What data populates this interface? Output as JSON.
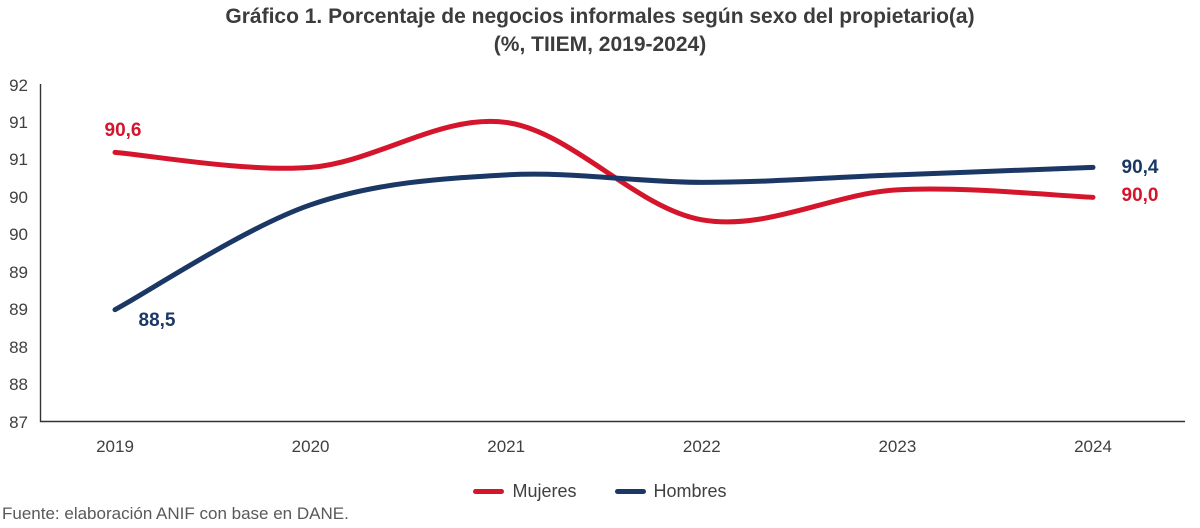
{
  "title": {
    "line1": "Gráfico 1. Porcentaje de negocios informales según sexo del propietario(a)",
    "line2": "(%, TIIEM, 2019-2024)"
  },
  "source": "Fuente: elaboración ANIF con base en DANE.",
  "colors": {
    "mujeres": "#d4152c",
    "hombres": "#1a3765",
    "axis_line": "#333333",
    "tick_text": "#404040",
    "title_text": "#3c3c3c",
    "source_text": "#595959"
  },
  "chart_data": {
    "type": "line",
    "smoothed": true,
    "title": "Gráfico 1. Porcentaje de negocios informales según sexo del propietario(a)",
    "subtitle": "(%, TIIEM, 2019-2024)",
    "x": [
      2019,
      2020,
      2021,
      2022,
      2023,
      2024
    ],
    "x_tick_labels": [
      "2019",
      "2020",
      "2021",
      "2022",
      "2023",
      "2024"
    ],
    "series": [
      {
        "name": "Mujeres",
        "color": "#d4152c",
        "values": [
          90.6,
          90.4,
          91.0,
          89.7,
          90.1,
          90.0
        ],
        "first_label": "90,6",
        "last_label": "90,0"
      },
      {
        "name": "Hombres",
        "color": "#1a3765",
        "values": [
          88.5,
          89.9,
          90.3,
          90.2,
          90.3,
          90.4
        ],
        "first_label": "88,5",
        "last_label": "90,4"
      }
    ],
    "y_axis": {
      "min": 87,
      "max": 91.5,
      "step": 0.5,
      "tick_labels_top_to_bottom": [
        "92",
        "91",
        "91",
        "90",
        "90",
        "89",
        "89",
        "88",
        "88",
        "87"
      ],
      "note": "ticks every 0.5 formatted with 0 decimals"
    },
    "grid": false,
    "legend_position": "bottom-center"
  }
}
